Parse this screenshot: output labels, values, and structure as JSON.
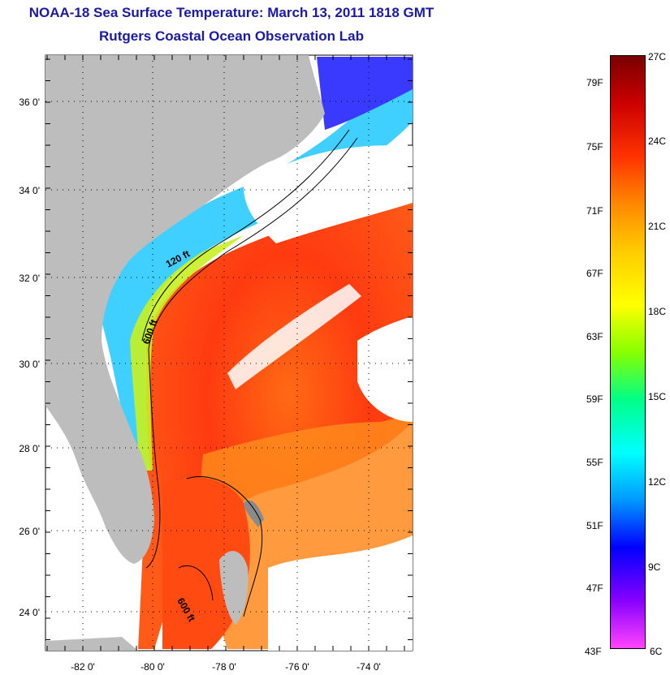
{
  "title": "NOAA-18 Sea Surface Temperature:  March 13, 2011 1818 GMT",
  "subtitle": "Rutgers Coastal Ocean Observation Lab",
  "map": {
    "lon_ticks": [
      "-82 0'",
      "-80 0'",
      "-78 0'",
      "-76 0'",
      "-74 0'"
    ],
    "lat_ticks": [
      "36 0'",
      "34 0'",
      "32 0'",
      "30 0'",
      "28 0'",
      "26 0'",
      "24 0'"
    ],
    "contour_labels": [
      "120 ft",
      "600 ft",
      "600 ft"
    ],
    "colors": {
      "land": "#bdbdbd",
      "cloud": "#ffffff",
      "warm_core": "#ff3a10",
      "shelf": "#3fd0ff"
    }
  },
  "colorbar": {
    "f_labels": [
      "79F",
      "75F",
      "71F",
      "67F",
      "63F",
      "59F",
      "55F",
      "51F",
      "47F",
      "43F"
    ],
    "c_labels": [
      "27C",
      "24C",
      "21C",
      "18C",
      "15C",
      "12C",
      "9C",
      "6C"
    ],
    "colors": [
      "#7a0000",
      "#cc0000",
      "#ff3300",
      "#ff8800",
      "#ffcc00",
      "#ffff00",
      "#88ff00",
      "#00ff88",
      "#00ffff",
      "#0099ff",
      "#0000ff",
      "#8800ff",
      "#ff44ff"
    ]
  }
}
